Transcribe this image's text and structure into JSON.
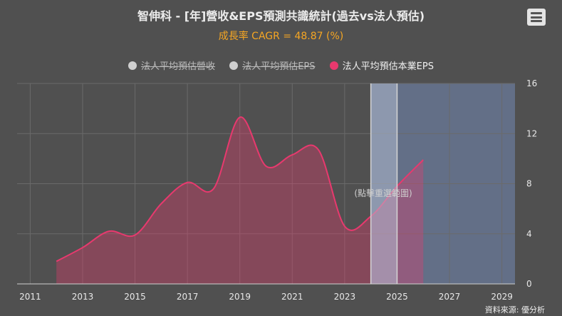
{
  "title": "智伸科 - [年]營收&EPS預測共識統計(過去vs法人預估)",
  "subtitle": "成長率 CAGR = 48.87 (%)",
  "credit": "資料來源: 優分析",
  "menu_icon": "hamburger-menu-icon",
  "colors": {
    "eps": "#e8396e",
    "hidden": "#cfcfcf",
    "band": "#6a7a9a",
    "accent": "#f5a623"
  },
  "legend": [
    {
      "label": "法人平均預估營收",
      "state": "hidden"
    },
    {
      "label": "法人平均預估EPS",
      "state": "hidden"
    },
    {
      "label": "法人平均預估本業EPS",
      "state": "active"
    }
  ],
  "chart_data": {
    "type": "area",
    "series": [
      {
        "name": "法人平均預估本業EPS",
        "x": [
          2012,
          2013,
          2014,
          2015,
          2016,
          2017,
          2018,
          2019,
          2020,
          2021,
          2022,
          2023,
          2024,
          2025,
          2026
        ],
        "values": [
          1.8,
          2.9,
          4.2,
          3.9,
          6.4,
          8.1,
          7.6,
          13.3,
          9.4,
          10.3,
          10.7,
          4.6,
          5.4,
          7.8,
          9.9
        ]
      }
    ],
    "x_ticks": [
      "2011",
      "2013",
      "2015",
      "2017",
      "2019",
      "2021",
      "2023",
      "2025",
      "2027",
      "2029"
    ],
    "y_ticks": [
      "0",
      "4",
      "8",
      "12",
      "16"
    ],
    "xlim": [
      2010.5,
      2029.5
    ],
    "ylim": [
      0,
      16
    ],
    "y_axis_side": "right",
    "grid": true,
    "forecast_band": [
      2024,
      2029.5
    ],
    "selection_band": [
      2024,
      2025
    ],
    "band_hint": "(點擊重選範圍)"
  }
}
